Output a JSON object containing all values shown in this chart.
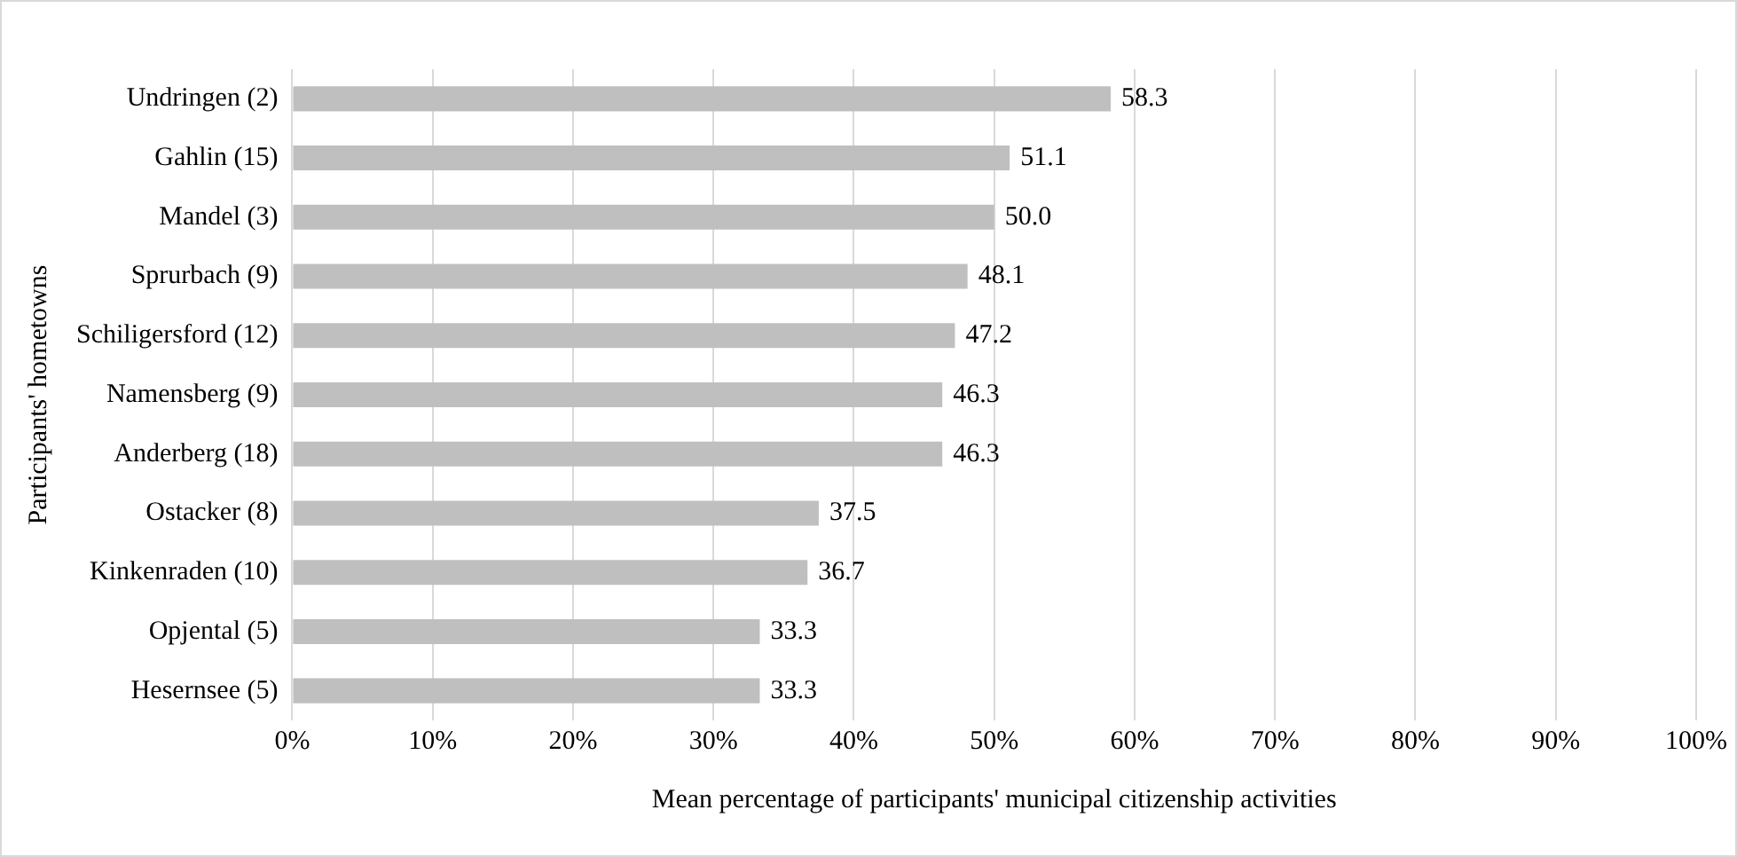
{
  "chart_data": {
    "type": "bar",
    "orientation": "horizontal",
    "xlabel": "Mean percentage of participants' municipal citizenship activities",
    "ylabel": "Participants' hometowns",
    "categories": [
      "Undringen (2)",
      "Gahlin (15)",
      "Mandel (3)",
      "Sprurbach (9)",
      "Schiligersford (12)",
      "Namensberg (9)",
      "Anderberg (18)",
      "Ostacker (8)",
      "Kinkenraden (10)",
      "Opjental (5)",
      "Hesernsee (5)"
    ],
    "values": [
      58.3,
      51.1,
      50.0,
      48.1,
      47.2,
      46.3,
      46.3,
      37.5,
      36.7,
      33.3,
      33.3
    ],
    "value_labels": [
      "58.3",
      "51.1",
      "50.0",
      "48.1",
      "47.2",
      "46.3",
      "46.3",
      "37.5",
      "36.7",
      "33.3",
      "33.3"
    ],
    "color": "#bfbfbf",
    "xlim": [
      0,
      100
    ],
    "xticks": [
      {
        "value": 0,
        "label": "0%"
      },
      {
        "value": 10,
        "label": "10%"
      },
      {
        "value": 20,
        "label": "20%"
      },
      {
        "value": 30,
        "label": "30%"
      },
      {
        "value": 40,
        "label": "40%"
      },
      {
        "value": 50,
        "label": "50%"
      },
      {
        "value": 60,
        "label": "60%"
      },
      {
        "value": 70,
        "label": "70%"
      },
      {
        "value": 80,
        "label": "80%"
      },
      {
        "value": 90,
        "label": "90%"
      },
      {
        "value": 100,
        "label": "100%"
      }
    ],
    "grid": "x",
    "legend": false
  }
}
